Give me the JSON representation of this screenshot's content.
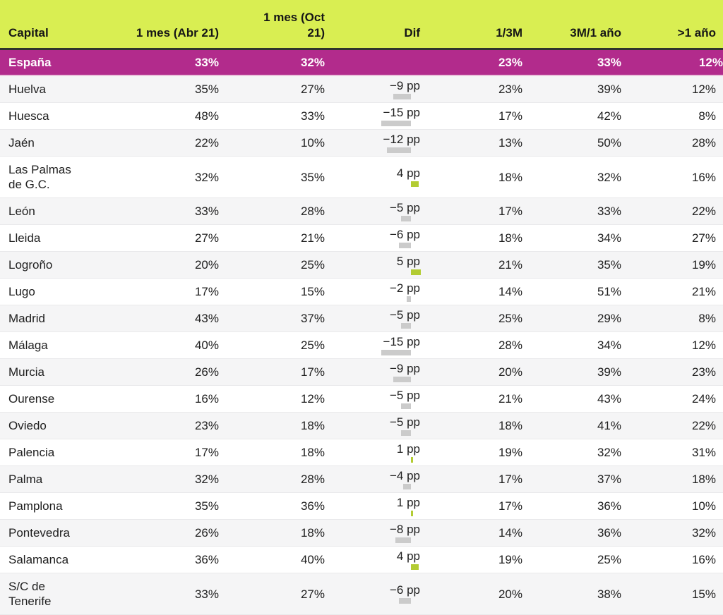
{
  "colors": {
    "header_background": "#d9ee52",
    "header_text": "#161616",
    "header_divider": "#30342c",
    "highlight_row_background": "#b22b8c",
    "highlight_row_text": "#ffffff",
    "highlight_row_border": "#eac4dc",
    "alt_row_background": "#f5f5f6",
    "row_divider": "#e9e9eb",
    "body_text": "#202020",
    "bar_negative": "#cbcbcb",
    "bar_positive": "#b3cc33"
  },
  "chart_data": {
    "type": "table",
    "columns": [
      "Capital",
      "1 mes (Abr 21)",
      "1 mes (Oct 21)",
      "Dif",
      "1/3M",
      "3M/1 año",
      ">1 año"
    ],
    "dif_unit": "pp",
    "rows": [
      {
        "capital": "España",
        "abr21": "33%",
        "oct21": "32%",
        "dif_label": "",
        "dif_pp": null,
        "m1_3": "23%",
        "m3_1y": "33%",
        "gt1y": "12%",
        "highlight": true
      },
      {
        "capital": "Huelva",
        "abr21": "35%",
        "oct21": "27%",
        "dif_label": "−9 pp",
        "dif_pp": -9,
        "m1_3": "23%",
        "m3_1y": "39%",
        "gt1y": "12%",
        "highlight": false
      },
      {
        "capital": "Huesca",
        "abr21": "48%",
        "oct21": "33%",
        "dif_label": "−15 pp",
        "dif_pp": -15,
        "m1_3": "17%",
        "m3_1y": "42%",
        "gt1y": "8%",
        "highlight": false
      },
      {
        "capital": "Jaén",
        "abr21": "22%",
        "oct21": "10%",
        "dif_label": "−12 pp",
        "dif_pp": -12,
        "m1_3": "13%",
        "m3_1y": "50%",
        "gt1y": "28%",
        "highlight": false
      },
      {
        "capital": "Las Palmas de G.C.",
        "abr21": "32%",
        "oct21": "35%",
        "dif_label": "4 pp",
        "dif_pp": 4,
        "m1_3": "18%",
        "m3_1y": "32%",
        "gt1y": "16%",
        "highlight": false
      },
      {
        "capital": "León",
        "abr21": "33%",
        "oct21": "28%",
        "dif_label": "−5 pp",
        "dif_pp": -5,
        "m1_3": "17%",
        "m3_1y": "33%",
        "gt1y": "22%",
        "highlight": false
      },
      {
        "capital": "Lleida",
        "abr21": "27%",
        "oct21": "21%",
        "dif_label": "−6 pp",
        "dif_pp": -6,
        "m1_3": "18%",
        "m3_1y": "34%",
        "gt1y": "27%",
        "highlight": false
      },
      {
        "capital": "Logroño",
        "abr21": "20%",
        "oct21": "25%",
        "dif_label": "5 pp",
        "dif_pp": 5,
        "m1_3": "21%",
        "m3_1y": "35%",
        "gt1y": "19%",
        "highlight": false
      },
      {
        "capital": "Lugo",
        "abr21": "17%",
        "oct21": "15%",
        "dif_label": "−2 pp",
        "dif_pp": -2,
        "m1_3": "14%",
        "m3_1y": "51%",
        "gt1y": "21%",
        "highlight": false
      },
      {
        "capital": "Madrid",
        "abr21": "43%",
        "oct21": "37%",
        "dif_label": "−5 pp",
        "dif_pp": -5,
        "m1_3": "25%",
        "m3_1y": "29%",
        "gt1y": "8%",
        "highlight": false
      },
      {
        "capital": "Málaga",
        "abr21": "40%",
        "oct21": "25%",
        "dif_label": "−15 pp",
        "dif_pp": -15,
        "m1_3": "28%",
        "m3_1y": "34%",
        "gt1y": "12%",
        "highlight": false
      },
      {
        "capital": "Murcia",
        "abr21": "26%",
        "oct21": "17%",
        "dif_label": "−9 pp",
        "dif_pp": -9,
        "m1_3": "20%",
        "m3_1y": "39%",
        "gt1y": "23%",
        "highlight": false
      },
      {
        "capital": "Ourense",
        "abr21": "16%",
        "oct21": "12%",
        "dif_label": "−5 pp",
        "dif_pp": -5,
        "m1_3": "21%",
        "m3_1y": "43%",
        "gt1y": "24%",
        "highlight": false
      },
      {
        "capital": "Oviedo",
        "abr21": "23%",
        "oct21": "18%",
        "dif_label": "−5 pp",
        "dif_pp": -5,
        "m1_3": "18%",
        "m3_1y": "41%",
        "gt1y": "22%",
        "highlight": false
      },
      {
        "capital": "Palencia",
        "abr21": "17%",
        "oct21": "18%",
        "dif_label": "1 pp",
        "dif_pp": 1,
        "m1_3": "19%",
        "m3_1y": "32%",
        "gt1y": "31%",
        "highlight": false
      },
      {
        "capital": "Palma",
        "abr21": "32%",
        "oct21": "28%",
        "dif_label": "−4 pp",
        "dif_pp": -4,
        "m1_3": "17%",
        "m3_1y": "37%",
        "gt1y": "18%",
        "highlight": false
      },
      {
        "capital": "Pamplona",
        "abr21": "35%",
        "oct21": "36%",
        "dif_label": "1 pp",
        "dif_pp": 1,
        "m1_3": "17%",
        "m3_1y": "36%",
        "gt1y": "10%",
        "highlight": false
      },
      {
        "capital": "Pontevedra",
        "abr21": "26%",
        "oct21": "18%",
        "dif_label": "−8 pp",
        "dif_pp": -8,
        "m1_3": "14%",
        "m3_1y": "36%",
        "gt1y": "32%",
        "highlight": false
      },
      {
        "capital": "Salamanca",
        "abr21": "36%",
        "oct21": "40%",
        "dif_label": "4 pp",
        "dif_pp": 4,
        "m1_3": "19%",
        "m3_1y": "25%",
        "gt1y": "16%",
        "highlight": false
      },
      {
        "capital": "S/C de Tenerife",
        "abr21": "33%",
        "oct21": "27%",
        "dif_label": "−6 pp",
        "dif_pp": -6,
        "m1_3": "20%",
        "m3_1y": "38%",
        "gt1y": "15%",
        "highlight": false
      }
    ]
  }
}
